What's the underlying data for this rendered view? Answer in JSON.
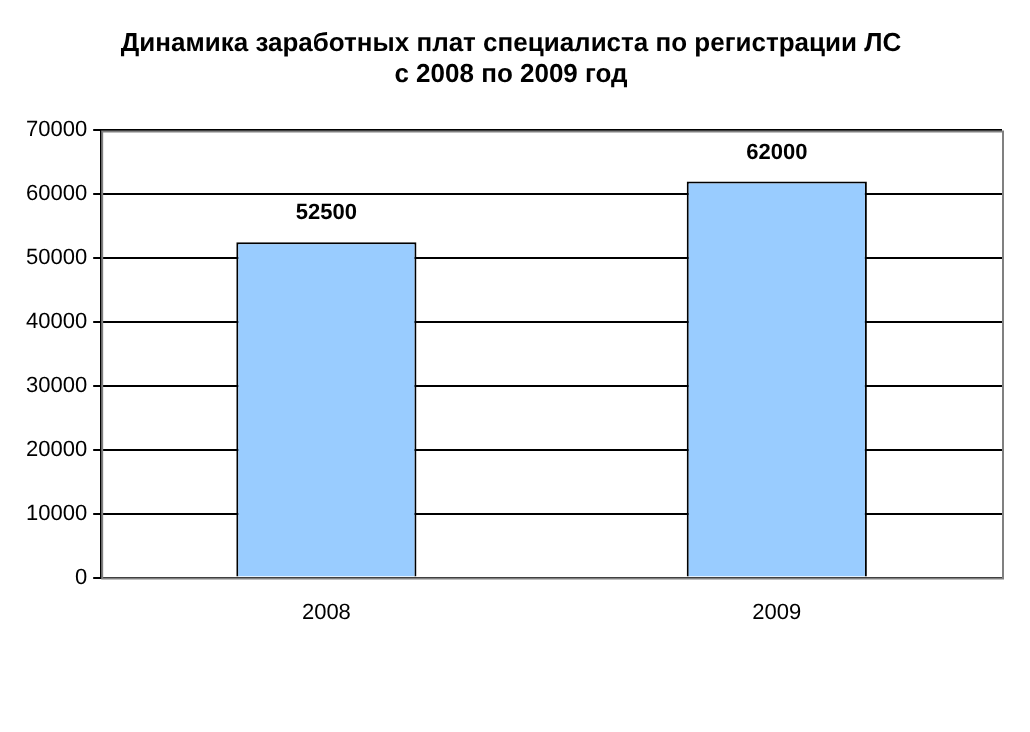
{
  "chart_data": {
    "type": "bar",
    "title": "Динамика заработных плат специалиста по регистрации ЛС\nс 2008 по 2009 год",
    "categories": [
      "2008",
      "2009"
    ],
    "values": [
      52500,
      62000
    ],
    "color": "#99ccff",
    "ylim": [
      0,
      70000
    ],
    "yticks": [
      0,
      10000,
      20000,
      30000,
      40000,
      50000,
      60000,
      70000
    ],
    "grid": "y",
    "data_labels": true
  }
}
